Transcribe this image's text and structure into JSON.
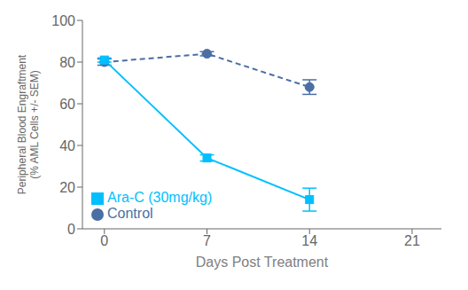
{
  "chart_data": {
    "type": "line",
    "xlabel": "Days Post Treatment",
    "ylabel": "Peripheral Blood Engraftment\n(% AML Cells +/- SEM)",
    "x": [
      0,
      7,
      14
    ],
    "xlim": [
      -1.5,
      23
    ],
    "xticks": [
      0,
      7,
      14,
      21
    ],
    "ylim": [
      0,
      100
    ],
    "yticks": [
      0,
      20,
      40,
      60,
      80,
      100
    ],
    "grid": false,
    "legend": "lower left",
    "series": [
      {
        "name": "Control",
        "color": "#4a6fa5",
        "marker": "circle",
        "line_style": "dashed",
        "values": [
          80,
          84,
          68
        ],
        "errors": [
          1.5,
          1.0,
          3.5
        ]
      },
      {
        "name": "Ara-C (30mg/kg)",
        "color": "#00bfff",
        "marker": "square",
        "line_style": "solid",
        "values": [
          81,
          34,
          14
        ],
        "errors": [
          1.0,
          1.5,
          5.5
        ]
      }
    ]
  }
}
